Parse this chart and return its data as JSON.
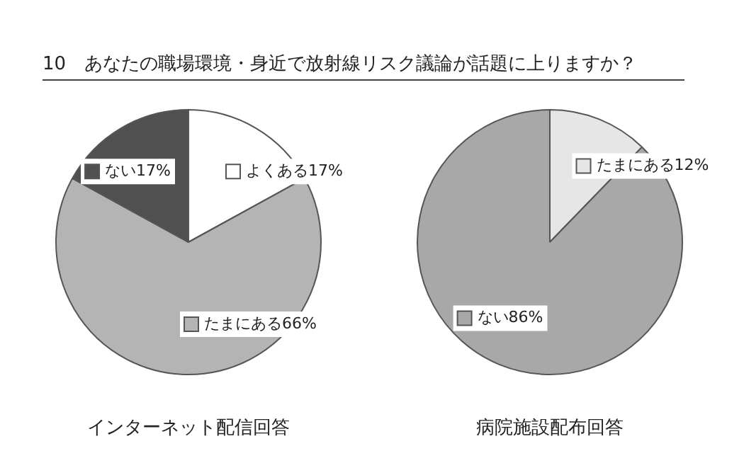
{
  "chart_data": [
    {
      "type": "pie",
      "title": "10　あなたの職場環境・身近で放射線リスク議論が話題に上りますか？",
      "xlabel": "インターネット配信回答",
      "categories": [
        "よくある",
        "たまにある",
        "ない"
      ],
      "values": [
        17,
        66,
        17
      ],
      "value_labels": [
        "17%",
        "66%",
        "17%"
      ],
      "colors": [
        "#ffffff",
        "#b4b4b4",
        "#505050"
      ],
      "legend": "right"
    },
    {
      "type": "pie",
      "xlabel": "病院施設配布回答",
      "categories": [
        "たまにある",
        "ない"
      ],
      "values": [
        12,
        86
      ],
      "value_labels": [
        "12%",
        "86%"
      ],
      "colors": [
        "#e6e6e6",
        "#a8a8a8"
      ],
      "legend": "right"
    }
  ]
}
